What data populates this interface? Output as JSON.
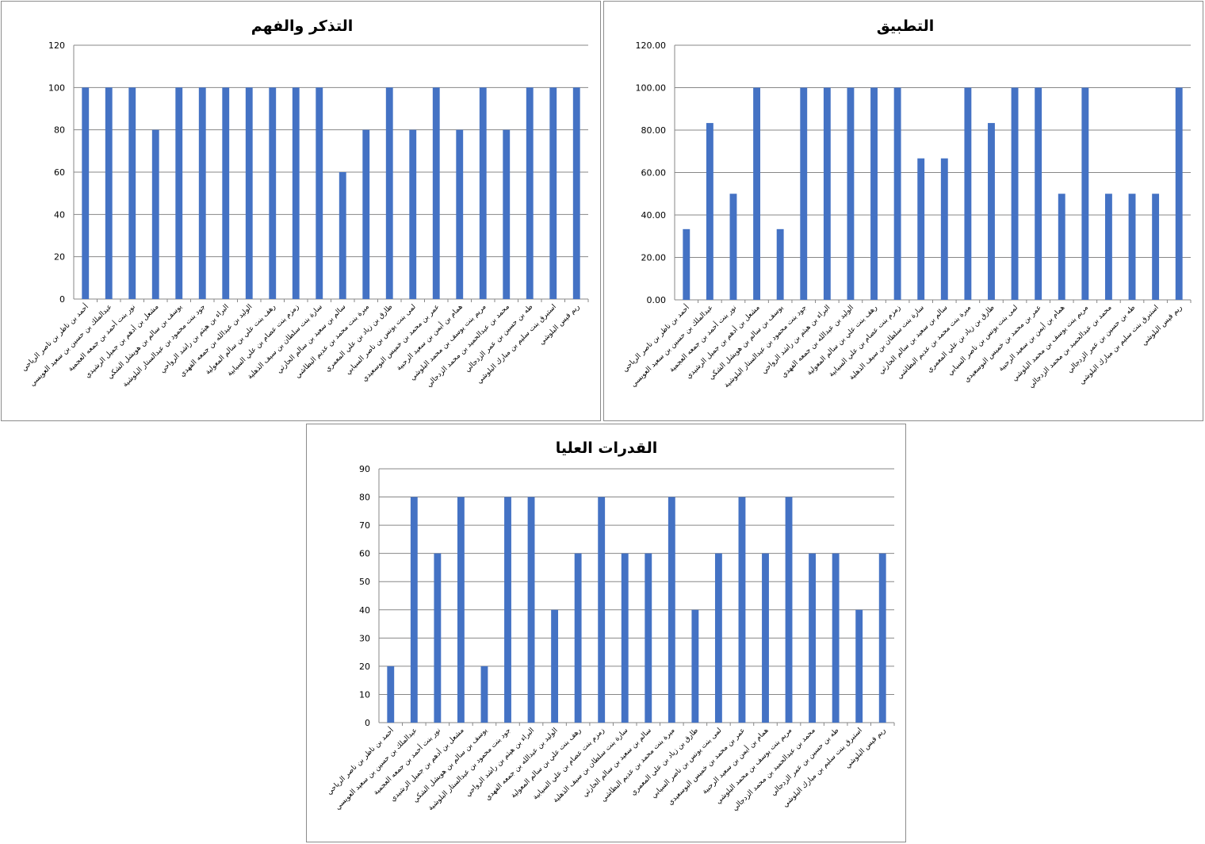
{
  "chart_data": [
    {
      "type": "bar",
      "title": "التذكر والفهم",
      "xlabel": "",
      "ylabel": "",
      "ylim": [
        0,
        120
      ],
      "yticks": [
        "0",
        "20",
        "40",
        "60",
        "80",
        "100",
        "120"
      ],
      "grid": true,
      "legend": "none",
      "color": "#4472C4",
      "categories": [
        "أحمد بن ناظر بن ناصر الرياحي",
        "عبدالملك بن حسين بن سعيد العويسي",
        "نور بنت أحمد بن جمعه العجمية",
        "مشعل بن أدهم بن جميل الرشيدي",
        "يوسف بن سالم بن هويشل الشكي",
        "جود بنت محمود بن عبدالستار البلوشية",
        "البراء بن هيثم بن راشد الرواحي",
        "الوليد بن عبدالله بن جمعه الفهدي",
        "رهف بنت علي بن سالم المعولية",
        "زمزم بنت عصام بن علي السيابية",
        "سارة بنت سلطان بن سيف الذهلية",
        "سالم بن سعيد بن سالم الحارثي",
        "ميرة بنت محمد بن عديم البطاشي",
        "طارق بن زياد بن علي المعمري",
        "لمى بنت يونس بن ناصر السيابي",
        "عمر بن محمد بن خميس البوسعيدي",
        "همام بن أيمن بن سعيد الرحبية",
        "مريم بنت يوسف بن محمد البلوشي",
        "محمد بن عبدالحميد بن محمد الزدجالي",
        "طه بن حسين بن عمر الزدجالي",
        "استبرق بنت سليم بن مبارك البلوشي",
        "ريم قيس البلوشي"
      ],
      "values": [
        100,
        100,
        100,
        80,
        100,
        100,
        100,
        100,
        100,
        100,
        100,
        60,
        80,
        100,
        80,
        100,
        80,
        100,
        80,
        100,
        100,
        100
      ]
    },
    {
      "type": "bar",
      "title": "التطبيق",
      "xlabel": "",
      "ylabel": "",
      "ylim": [
        0,
        120
      ],
      "yticks": [
        "0.00",
        "20.00",
        "40.00",
        "60.00",
        "80.00",
        "100.00",
        "120.00"
      ],
      "grid": true,
      "legend": "none",
      "color": "#4472C4",
      "categories": [
        "أحمد بن ناظر بن ناصر الرياحي",
        "عبدالملك بن حسين بن سعيد العويسي",
        "نور بنت أحمد بن جمعه العجمية",
        "مشعل بن أدهم بن جميل الرشيدي",
        "يوسف بن سالم بن هويشل الشكي",
        "جود بنت محمود بن عبدالستار البلوشية",
        "البراء بن هيثم بن راشد الرواحي",
        "الوليد بن عبدالله بن جمعه الفهدي",
        "رهف بنت علي بن سالم المعولية",
        "زمزم بنت عصام بن علي السيابية",
        "سارة بنت سلطان بن سيف الذهلية",
        "سالم بن سعيد بن سالم الحارثي",
        "ميرة بنت محمد بن عديم البطاشي",
        "طارق بن زياد بن علي المعمري",
        "لمى بنت يونس بن ناصر السيابي",
        "عمر بن محمد بن خميس البوسعيدي",
        "همام بن أيمن بن سعيد الرحبية",
        "مريم بنت يوسف بن محمد البلوشي",
        "محمد بن عبدالحميد بن محمد الزدجالي",
        "طه بن حسين بن عمر الزدجالي",
        "استبرق بنت سليم بن مبارك البلوشي",
        "ريم قيس البلوشي"
      ],
      "values": [
        33.33,
        83.33,
        50,
        100,
        33.33,
        100,
        100,
        100,
        100,
        100,
        66.67,
        66.67,
        100,
        83.33,
        100,
        100,
        50,
        100,
        50,
        50,
        50,
        100
      ]
    },
    {
      "type": "bar",
      "title": "القدرات العليا",
      "xlabel": "",
      "ylabel": "",
      "ylim": [
        0,
        90
      ],
      "yticks": [
        "0",
        "10",
        "20",
        "30",
        "40",
        "50",
        "60",
        "70",
        "80",
        "90"
      ],
      "grid": true,
      "legend": "none",
      "color": "#4472C4",
      "categories": [
        "أحمد بن ناظر بن ناصر الرياحي",
        "عبدالملك بن حسين بن سعيد العويسي",
        "نور بنت أحمد بن جمعه العجمية",
        "مشعل بن أدهم بن جميل الرشيدي",
        "يوسف بن سالم بن هويشل الشكي",
        "جود بنت محمود بن عبدالستار البلوشية",
        "البراء بن هيثم بن راشد الرواحي",
        "الوليد بن عبدالله بن جمعه الفهدي",
        "رهف بنت علي بن سالم المعولية",
        "زمزم بنت عصام بن علي السيابية",
        "سارة بنت سلطان بن سيف الذهلية",
        "سالم بن سعيد بن سالم الحارثي",
        "ميرة بنت محمد بن عديم البطاشي",
        "طارق بن زياد بن علي المعمري",
        "لمى بنت يونس بن ناصر السيابي",
        "عمر بن محمد بن خميس البوسعيدي",
        "همام بن أيمن بن سعيد الرحبية",
        "مريم بنت يوسف بن محمد البلوشي",
        "محمد بن عبدالحميد بن محمد الزدجالي",
        "طه بن حسين بن عمر الزدجالي",
        "استبرق بنت سليم بن مبارك البلوشي",
        "ريم قيس البلوشي"
      ],
      "values": [
        20,
        80,
        60,
        80,
        20,
        80,
        80,
        40,
        60,
        80,
        60,
        60,
        80,
        40,
        60,
        80,
        60,
        80,
        60,
        60,
        40,
        60
      ]
    }
  ]
}
